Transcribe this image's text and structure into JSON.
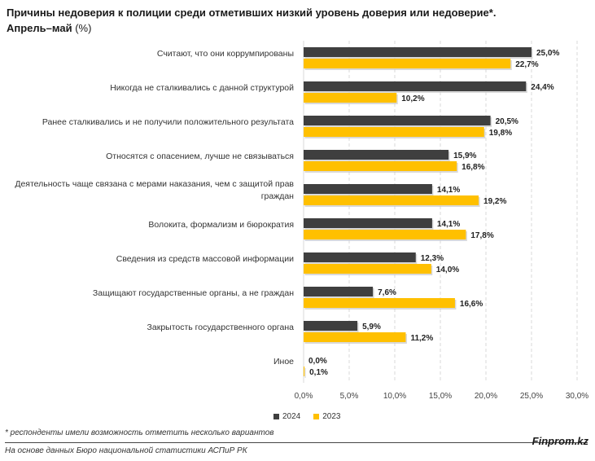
{
  "title": {
    "line1": "Причины недоверия к полиции среди отметивших низкий уровень доверия или недоверие*.",
    "line2": "Апрель–май",
    "unit": "(%)"
  },
  "colors": {
    "series_2024": "#3f3f3f",
    "series_2023": "#ffc000",
    "grid": "#d9d9d9"
  },
  "chart_data": {
    "type": "bar",
    "orientation": "horizontal",
    "categories": [
      "Считают, что они коррумпированы",
      "Никогда не сталкивались с данной структурой",
      "Ранее сталкивались и не получили положительного результата",
      "Относятся с опасением, лучше не связываться",
      "Деятельность чаще связана с мерами наказания, чем с защитой прав граждан",
      "Волокита, формализм и бюрократия",
      "Сведения из средств массовой информации",
      "Защищают государственные органы, а не граждан",
      "Закрытость государственного органа",
      "Иное"
    ],
    "series": [
      {
        "name": "2024",
        "values": [
          25.0,
          24.4,
          20.5,
          15.9,
          14.1,
          14.1,
          12.3,
          7.6,
          5.9,
          0.0
        ],
        "labels": [
          "25,0%",
          "24,4%",
          "20,5%",
          "15,9%",
          "14,1%",
          "14,1%",
          "12,3%",
          "7,6%",
          "5,9%",
          "0,0%"
        ]
      },
      {
        "name": "2023",
        "values": [
          22.7,
          10.2,
          19.8,
          16.8,
          19.2,
          17.8,
          14.0,
          16.6,
          11.2,
          0.1
        ],
        "labels": [
          "22,7%",
          "10,2%",
          "19,8%",
          "16,8%",
          "19,2%",
          "17,8%",
          "14,0%",
          "16,6%",
          "11,2%",
          "0,1%"
        ]
      }
    ],
    "xlim": [
      0,
      30
    ],
    "xticks": [
      0,
      5,
      10,
      15,
      20,
      25,
      30
    ],
    "xtick_labels": [
      "0,0%",
      "5,0%",
      "10,0%",
      "15,0%",
      "20,0%",
      "25,0%",
      "30,0%"
    ],
    "grid": "vertical-dashed",
    "legend": "bottom-center"
  },
  "legend": {
    "items": [
      "2024",
      "2023"
    ]
  },
  "footnote": "* респонденты имели возможность отметить несколько вариантов",
  "source": "На основе данных Бюро национальной статистики АСПиР РК",
  "brand": "Finprom.kz"
}
